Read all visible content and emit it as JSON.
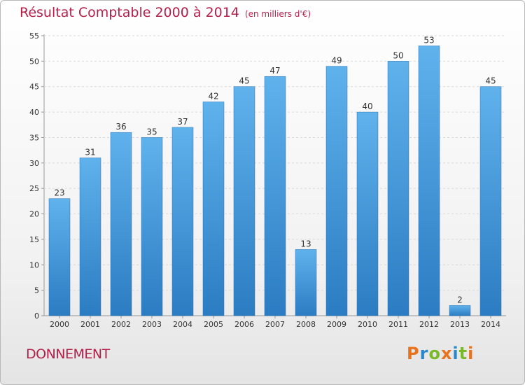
{
  "chart_data": {
    "type": "bar",
    "title": "Résultat Comptable 2000 à 2014",
    "subtitle": "(en milliers d'€)",
    "categories": [
      "2000",
      "2001",
      "2002",
      "2003",
      "2004",
      "2005",
      "2006",
      "2007",
      "2008",
      "2009",
      "2010",
      "2011",
      "2012",
      "2013",
      "2014"
    ],
    "values": [
      23,
      31,
      36,
      35,
      37,
      42,
      45,
      47,
      13,
      49,
      40,
      50,
      53,
      2,
      45
    ],
    "ylim": [
      0,
      55
    ],
    "yticks": [
      0,
      5,
      10,
      15,
      20,
      25,
      30,
      35,
      40,
      45,
      50,
      55
    ],
    "grid": true,
    "bar_color": "#3a8fd6"
  },
  "commune": "DONNEMENT",
  "logo": {
    "letters": [
      "P",
      "r",
      "o",
      "x",
      "i",
      "t",
      "i"
    ],
    "colors": [
      "#e8731c",
      "#2a88c9",
      "#7ab929",
      "#e8731c",
      "#2a88c9",
      "#7ab929",
      "#e8731c"
    ]
  }
}
